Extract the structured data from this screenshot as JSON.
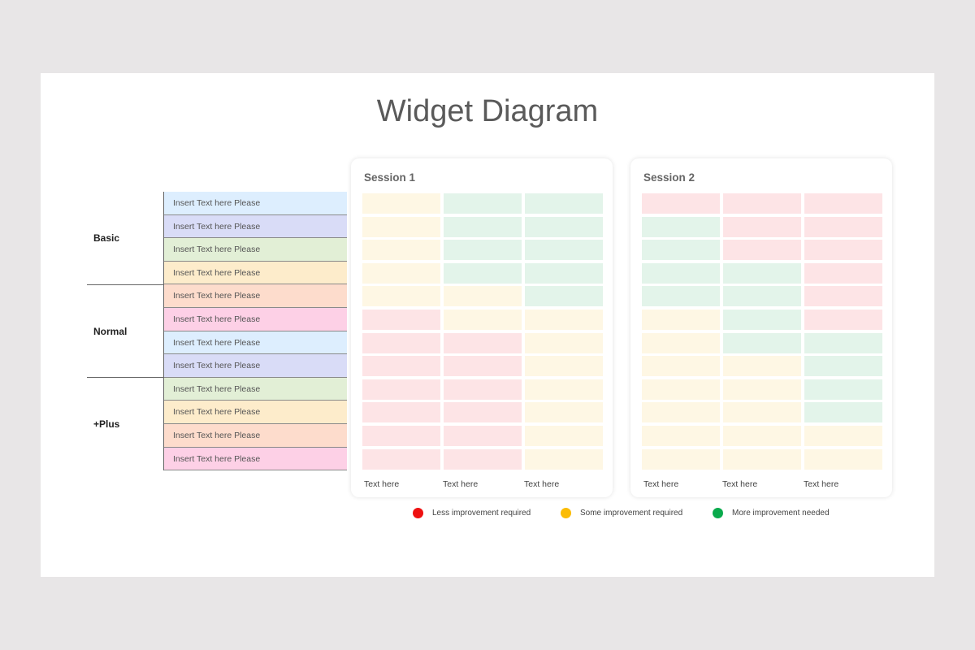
{
  "title": "Widget Diagram",
  "groups": [
    "Basic",
    "Normal",
    "+Plus"
  ],
  "rows": [
    {
      "label": "Insert Text here Please",
      "color": "#ddeefe"
    },
    {
      "label": "Insert Text here Please",
      "color": "#d9dcf7"
    },
    {
      "label": "Insert Text here Please",
      "color": "#e2efd6"
    },
    {
      "label": "Insert Text here Please",
      "color": "#fdeccb"
    },
    {
      "label": "Insert Text here Please",
      "color": "#fddccc"
    },
    {
      "label": "Insert Text here Please",
      "color": "#fdd0e6"
    },
    {
      "label": "Insert Text here Please",
      "color": "#ddeefe"
    },
    {
      "label": "Insert Text here Please",
      "color": "#d9dcf7"
    },
    {
      "label": "Insert Text here Please",
      "color": "#e2efd6"
    },
    {
      "label": "Insert Text here Please",
      "color": "#fdeccb"
    },
    {
      "label": "Insert Text here Please",
      "color": "#fddccc"
    },
    {
      "label": "Insert Text here Please",
      "color": "#fdd0e6"
    }
  ],
  "status_colors": {
    "R": "#fde4e6",
    "Y": "#fef7e4",
    "G": "#e3f4ea"
  },
  "sessions": [
    {
      "title": "Session 1",
      "columns": [
        "Text here",
        "Text here",
        "Text here"
      ],
      "grid": [
        "YGG",
        "YGG",
        "YGG",
        "YGG",
        "YYG",
        "RYY",
        "RRY",
        "RRY",
        "RRY",
        "RRY",
        "RRY",
        "RRY"
      ]
    },
    {
      "title": "Session 2",
      "columns": [
        "Text here",
        "Text here",
        "Text here"
      ],
      "grid": [
        "RRR",
        "GRR",
        "GRR",
        "GGR",
        "GGR",
        "YGR",
        "YGG",
        "YYG",
        "YYG",
        "YYG",
        "YYY",
        "YYY"
      ]
    }
  ],
  "legend": [
    {
      "label": "Less improvement required",
      "color": "#ee1111"
    },
    {
      "label": "Some improvement required",
      "color": "#fbbc05"
    },
    {
      "label": "More improvement needed",
      "color": "#0aaa4c"
    }
  ]
}
